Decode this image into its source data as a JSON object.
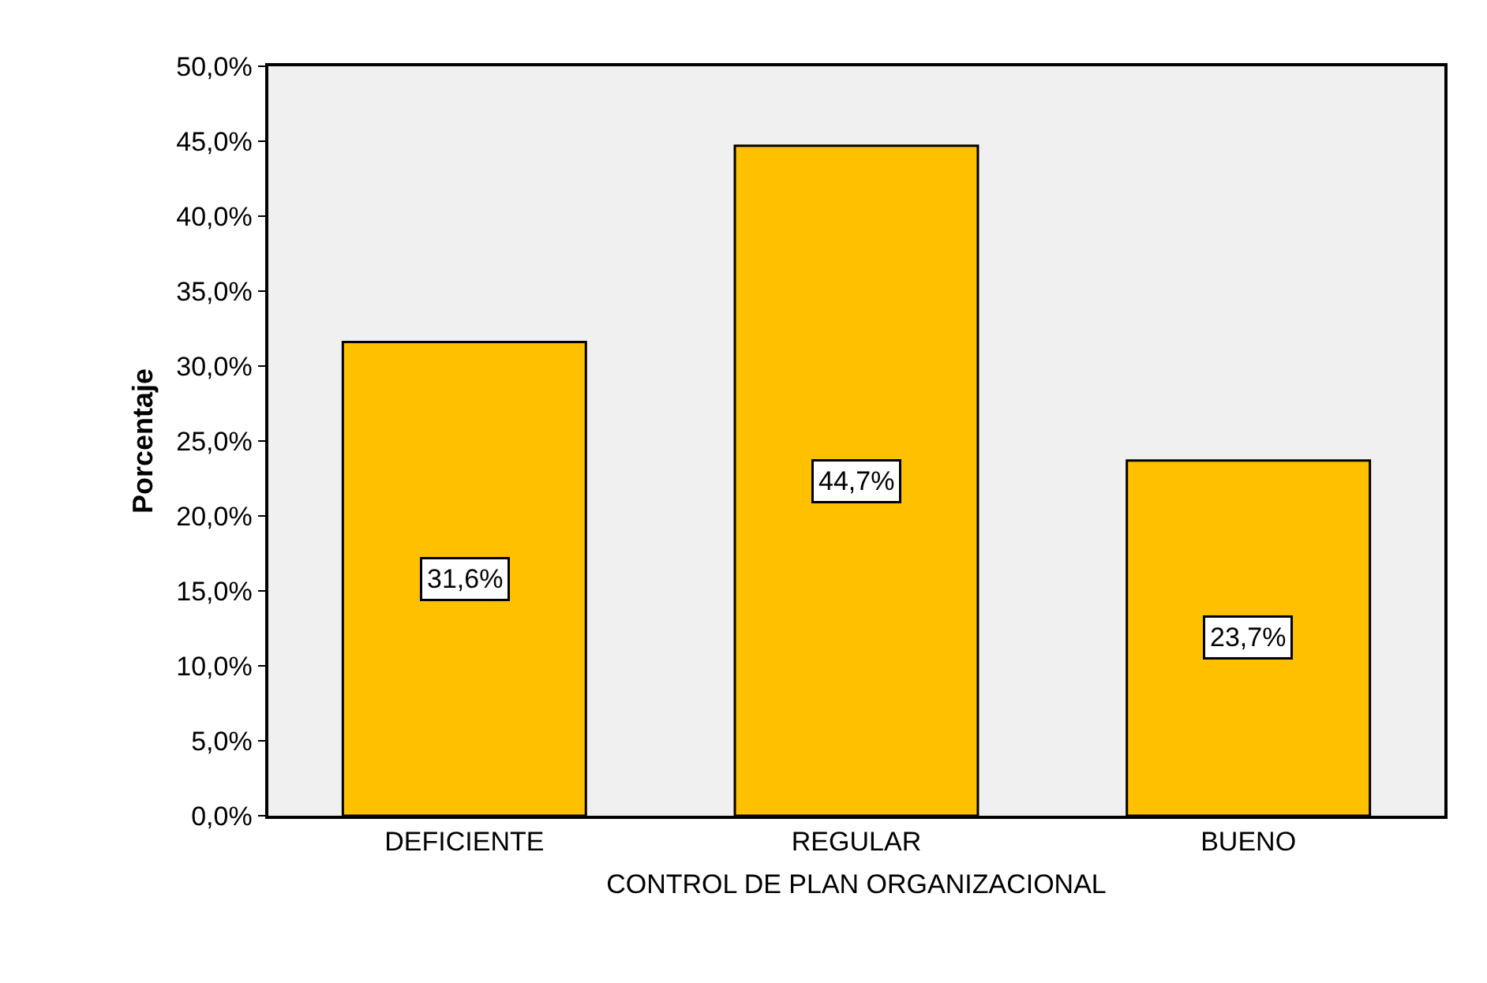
{
  "chart_data": {
    "type": "bar",
    "xlabel": "CONTROL DE PLAN ORGANIZACIONAL",
    "ylabel": "Porcentaje",
    "categories": [
      "DEFICIENTE",
      "REGULAR",
      "BUENO"
    ],
    "values": [
      31.6,
      44.7,
      23.7
    ],
    "value_labels": [
      "31,6%",
      "44,7%",
      "23,7%"
    ],
    "color": "#ffc000",
    "ylim": [
      0,
      50
    ],
    "yticks": [
      {
        "value": 0,
        "label": "0,0%"
      },
      {
        "value": 5,
        "label": "5,0%"
      },
      {
        "value": 10,
        "label": "10,0%"
      },
      {
        "value": 15,
        "label": "15,0%"
      },
      {
        "value": 20,
        "label": "20,0%"
      },
      {
        "value": 25,
        "label": "25,0%"
      },
      {
        "value": 30,
        "label": "30,0%"
      },
      {
        "value": 35,
        "label": "35,0%"
      },
      {
        "value": 40,
        "label": "40,0%"
      },
      {
        "value": 45,
        "label": "45,0%"
      },
      {
        "value": 50,
        "label": "50,0%"
      }
    ],
    "grid": false,
    "legend": false
  }
}
